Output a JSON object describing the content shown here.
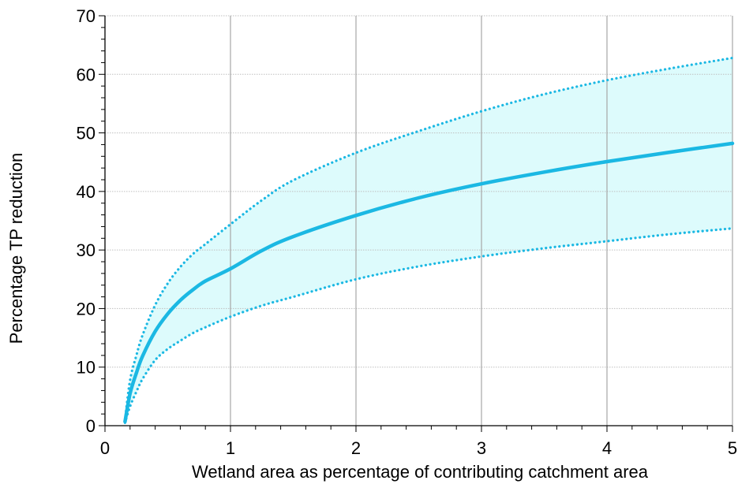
{
  "chart_data": {
    "type": "line",
    "title": "",
    "xlabel": "Wetland area as percentage of contributing catchment area",
    "ylabel": "Percentage TP reduction",
    "xlim": [
      0,
      5
    ],
    "ylim": [
      0,
      70
    ],
    "x_ticks": [
      "0",
      "1",
      "2",
      "3",
      "4",
      "5"
    ],
    "y_ticks": [
      "0",
      "10",
      "20",
      "30",
      "40",
      "50",
      "60",
      "70"
    ],
    "grid": {
      "x_major": true,
      "y_major": true
    },
    "legend": "none",
    "colors": {
      "line": "#1BB8E3",
      "band": "#DDFBFC",
      "grid_x": "#A6A6A6",
      "grid_y": "#BFBFBF",
      "axis": "#000000"
    },
    "series": [
      {
        "style": "solid",
        "x": [
          0.16,
          0.2,
          0.25,
          0.3,
          0.4,
          0.5,
          0.6,
          0.7,
          0.8,
          1.0,
          1.25,
          1.5,
          2.0,
          2.5,
          3.0,
          3.5,
          4.0,
          4.5,
          5.0
        ],
        "y": [
          0.7,
          5.5,
          9.0,
          11.9,
          16.1,
          19.1,
          21.4,
          23.2,
          24.7,
          26.8,
          29.9,
          32.3,
          35.9,
          38.9,
          41.3,
          43.3,
          45.1,
          46.7,
          48.2
        ]
      },
      {
        "style": "dotted",
        "x": [
          0.16,
          0.2,
          0.25,
          0.3,
          0.4,
          0.5,
          0.6,
          0.7,
          0.8,
          1.0,
          1.25,
          1.5,
          2.0,
          2.5,
          3.0,
          3.5,
          4.0,
          4.5,
          5.0
        ],
        "y": [
          1.0,
          7.8,
          12.0,
          15.5,
          20.6,
          24.3,
          27.1,
          29.3,
          31.0,
          34.4,
          38.5,
          41.9,
          46.6,
          50.3,
          53.7,
          56.6,
          59.0,
          61.0,
          62.8
        ]
      },
      {
        "style": "dotted",
        "x": [
          0.16,
          0.2,
          0.25,
          0.3,
          0.4,
          0.5,
          0.6,
          0.7,
          0.8,
          1.0,
          1.25,
          1.5,
          2.0,
          2.5,
          3.0,
          3.5,
          4.0,
          4.5,
          5.0
        ],
        "y": [
          0.5,
          3.3,
          5.8,
          8.0,
          11.2,
          13.1,
          14.5,
          15.8,
          16.8,
          18.6,
          20.5,
          22.0,
          25.0,
          27.2,
          28.9,
          30.3,
          31.5,
          32.7,
          33.7
        ]
      }
    ]
  }
}
